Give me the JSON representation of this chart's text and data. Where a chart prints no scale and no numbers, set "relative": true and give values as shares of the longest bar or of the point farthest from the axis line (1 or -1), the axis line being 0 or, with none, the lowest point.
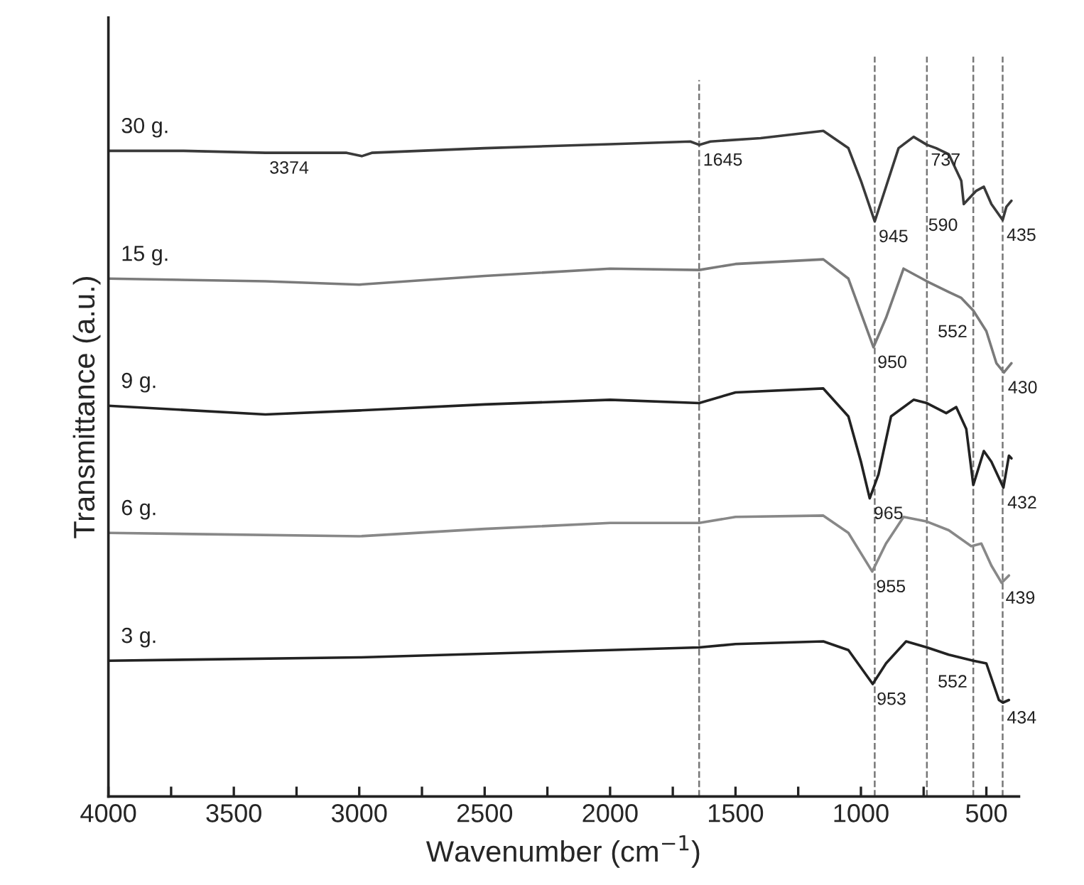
{
  "chart_data": {
    "type": "line",
    "relative": true,
    "xlabel": "Wavenumber (cm$^{−1}$)",
    "ylabel": "Transmittance (a.u.)",
    "xlim": [
      4000,
      370
    ],
    "xticks": [
      4000,
      {
        "value": 3750,
        "label": null
      },
      3500,
      {
        "value": 3250,
        "label": null
      },
      3000,
      {
        "value": 2750,
        "label": null
      },
      2500,
      {
        "value": 2250,
        "label": null
      },
      2000,
      {
        "value": 1750,
        "label": null
      },
      1500,
      {
        "value": 1250,
        "label": null
      },
      1000,
      {
        "value": 750,
        "label": null
      },
      500
    ],
    "tick_labels": "x",
    "grid": false,
    "marker": "none",
    "line_style": "solid",
    "series": [
      {
        "name": "30 g.",
        "color": "#3a3a3a",
        "x": [
          4000,
          3700,
          3374,
          3050,
          2990,
          2950,
          2500,
          2000,
          1680,
          1645,
          1600,
          1400,
          1150,
          1050,
          1000,
          945,
          900,
          850,
          790,
          737,
          700,
          650,
          600,
          590,
          540,
          510,
          480,
          435,
          420,
          400
        ],
        "values": [
          0.97,
          0.97,
          0.967,
          0.967,
          0.962,
          0.967,
          0.974,
          0.98,
          0.984,
          0.979,
          0.984,
          0.989,
          1.0,
          0.974,
          0.925,
          0.864,
          0.916,
          0.974,
          0.991,
          0.979,
          0.974,
          0.965,
          0.925,
          0.89,
          0.91,
          0.916,
          0.89,
          0.866,
          0.886,
          0.895
        ]
      },
      {
        "name": "15 g.",
        "color": "#7a7a7a",
        "x": [
          4000,
          3374,
          3000,
          2500,
          2000,
          1645,
          1500,
          1150,
          1050,
          950,
          900,
          830,
          737,
          650,
          600,
          552,
          500,
          460,
          430,
          400
        ],
        "values": [
          0.778,
          0.774,
          0.769,
          0.782,
          0.793,
          0.791,
          0.8,
          0.807,
          0.778,
          0.675,
          0.719,
          0.793,
          0.774,
          0.758,
          0.749,
          0.73,
          0.699,
          0.651,
          0.637,
          0.651
        ]
      },
      {
        "name": "9 g.",
        "color": "#222222",
        "x": [
          4000,
          3374,
          3000,
          2500,
          2000,
          1645,
          1500,
          1150,
          1050,
          1000,
          965,
          930,
          880,
          790,
          737,
          660,
          620,
          580,
          552,
          510,
          480,
          432,
          410,
          400
        ],
        "values": [
          0.587,
          0.574,
          0.58,
          0.589,
          0.596,
          0.591,
          0.607,
          0.613,
          0.571,
          0.503,
          0.448,
          0.484,
          0.571,
          0.596,
          0.591,
          0.576,
          0.585,
          0.552,
          0.468,
          0.519,
          0.503,
          0.464,
          0.512,
          0.508
        ]
      },
      {
        "name": "6 g.",
        "color": "#888888",
        "x": [
          4000,
          3000,
          2500,
          2000,
          1645,
          1500,
          1150,
          1050,
          955,
          900,
          830,
          737,
          650,
          560,
          520,
          480,
          439,
          410
        ],
        "values": [
          0.396,
          0.391,
          0.402,
          0.411,
          0.411,
          0.42,
          0.422,
          0.396,
          0.338,
          0.38,
          0.42,
          0.413,
          0.4,
          0.376,
          0.38,
          0.347,
          0.321,
          0.332
        ]
      },
      {
        "name": "3 g.",
        "color": "#222222",
        "x": [
          4000,
          3000,
          2000,
          1645,
          1500,
          1150,
          1050,
          953,
          900,
          820,
          737,
          650,
          552,
          500,
          450,
          434,
          410
        ],
        "values": [
          0.204,
          0.209,
          0.22,
          0.224,
          0.229,
          0.233,
          0.22,
          0.169,
          0.2,
          0.233,
          0.224,
          0.213,
          0.204,
          0.2,
          0.145,
          0.141,
          0.145
        ]
      }
    ],
    "ref_lines": [
      {
        "axis": "x",
        "value": 1645,
        "color": "#777777",
        "line_style": "dashed"
      },
      {
        "axis": "x",
        "value": 945,
        "color": "#777777",
        "line_style": "dashed"
      },
      {
        "axis": "x",
        "value": 737,
        "color": "#777777",
        "line_style": "dashed"
      },
      {
        "axis": "x",
        "value": 552,
        "color": "#777777",
        "line_style": "dashed"
      },
      {
        "axis": "x",
        "value": 435,
        "color": "#777777",
        "line_style": "dashed"
      }
    ],
    "annotations": [
      {
        "text": "3374",
        "x": 3374,
        "y": 0.967
      },
      {
        "text": "1645",
        "x": 1645,
        "y": 0.979
      },
      {
        "text": "945",
        "x": 945,
        "y": 0.864
      },
      {
        "text": "737",
        "x": 737,
        "y": 0.979
      },
      {
        "text": "590",
        "x": 590,
        "y": 0.89
      },
      {
        "text": "435",
        "x": 435,
        "y": 0.866
      },
      {
        "text": "950",
        "x": 950,
        "y": 0.675
      },
      {
        "text": "552",
        "x": 552,
        "y": 0.73
      },
      {
        "text": "430",
        "x": 430,
        "y": 0.637
      },
      {
        "text": "965",
        "x": 965,
        "y": 0.448
      },
      {
        "text": "432",
        "x": 432,
        "y": 0.464
      },
      {
        "text": "955",
        "x": 955,
        "y": 0.338
      },
      {
        "text": "439",
        "x": 439,
        "y": 0.321
      },
      {
        "text": "953",
        "x": 953,
        "y": 0.169
      },
      {
        "text": "552",
        "x": 552,
        "y": 0.204
      },
      {
        "text": "434",
        "x": 434,
        "y": 0.141
      }
    ]
  }
}
